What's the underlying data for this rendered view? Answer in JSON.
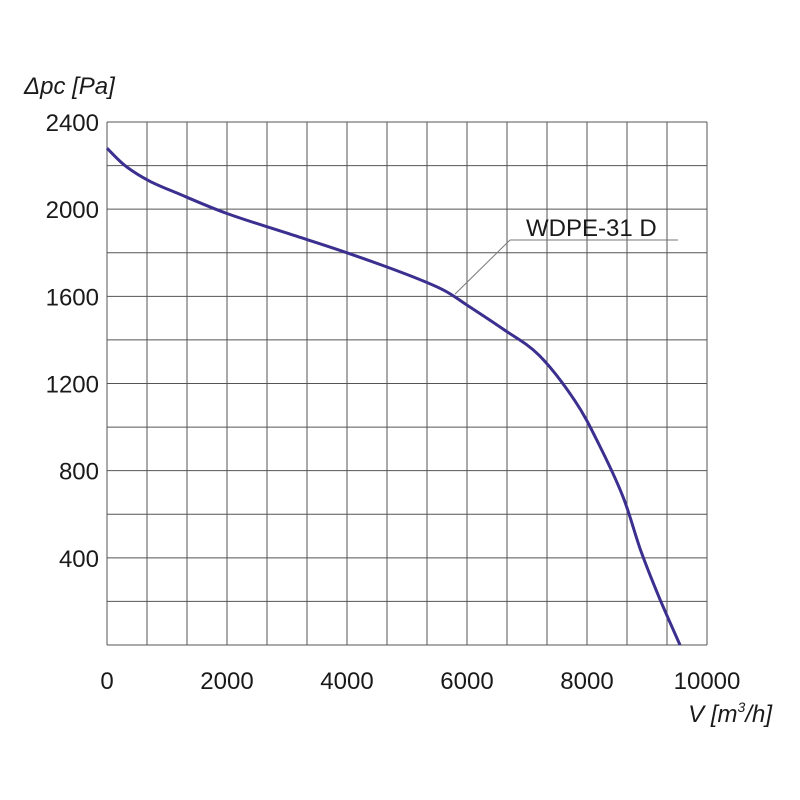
{
  "chart_data": {
    "type": "line",
    "xlabel": "V [m³/h]",
    "xlabel_main": "V [m",
    "xlabel_sup": "3",
    "xlabel_tail": "/h]",
    "ylabel": "Δpc [Pa]",
    "xlim": [
      0,
      10000
    ],
    "ylim": [
      0,
      2400
    ],
    "x_ticks": [
      0,
      2000,
      4000,
      6000,
      8000,
      10000
    ],
    "y_ticks": [
      400,
      800,
      1200,
      1600,
      2000,
      2400
    ],
    "x_tick_labels": [
      "0",
      "2000",
      "4000",
      "6000",
      "8000",
      "10000"
    ],
    "y_tick_labels": [
      "400",
      "800",
      "1200",
      "1600",
      "2000",
      "2400"
    ],
    "grid": true,
    "x_minor_step": 666.67,
    "y_minor_step": 200,
    "series": [
      {
        "name": "WDPE-31 D",
        "color": "#3b2f8f",
        "x": [
          0,
          300,
          700,
          1200,
          2000,
          3000,
          4000,
          5000,
          5600,
          6000,
          6600,
          7200,
          7800,
          8200,
          8600,
          8900,
          9200,
          9550
        ],
        "y": [
          2280,
          2200,
          2130,
          2070,
          1980,
          1890,
          1800,
          1700,
          1630,
          1560,
          1450,
          1330,
          1120,
          920,
          680,
          430,
          220,
          0
        ]
      }
    ],
    "annotation": {
      "text": "WDPE-31 D",
      "points_to": [
        5800,
        1610
      ]
    }
  }
}
